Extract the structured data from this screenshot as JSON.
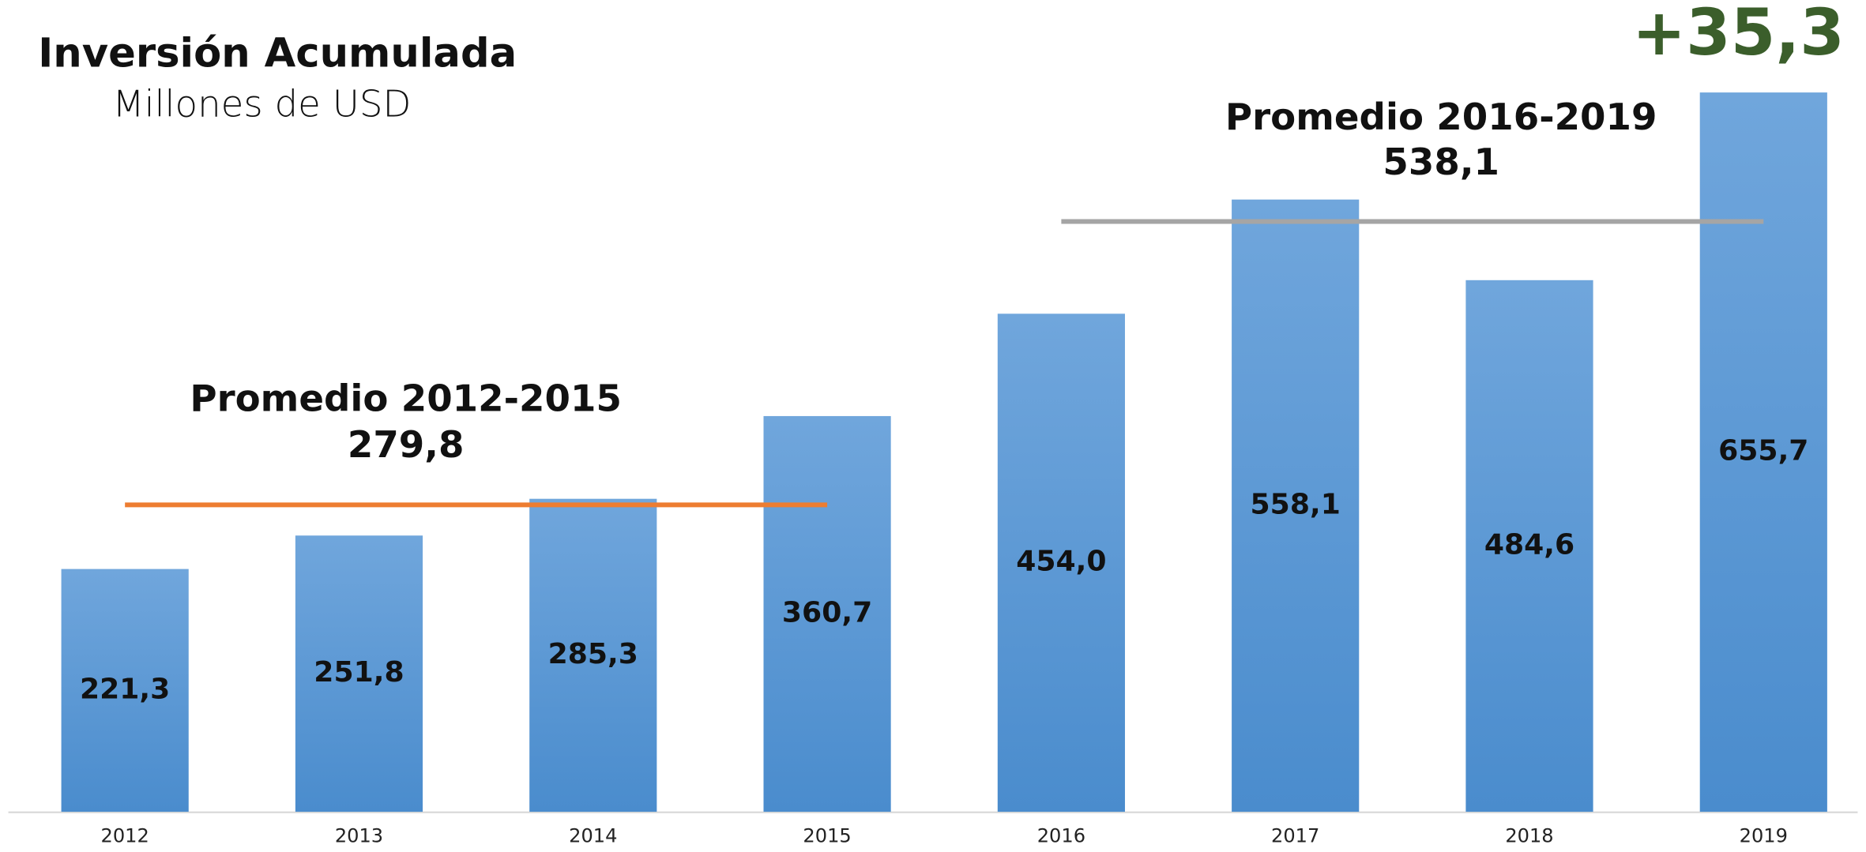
{
  "chart_data": {
    "type": "bar",
    "title": "Inversión Acumulada",
    "subtitle": "Millones de USD",
    "categories": [
      "2012",
      "2013",
      "2014",
      "2015",
      "2016",
      "2017",
      "2018",
      "2019"
    ],
    "values": [
      221.3,
      251.8,
      285.3,
      360.7,
      454.0,
      558.1,
      484.6,
      655.7
    ],
    "value_labels": [
      "221,3",
      "251,8",
      "285,3",
      "360,7",
      "454,0",
      "558,1",
      "484,6",
      "655,7"
    ],
    "color": "#5b9bd5",
    "ylim": [
      0,
      740
    ],
    "averages": [
      {
        "label": "Promedio 2012-2015",
        "value": 279.8,
        "value_label": "279,8",
        "start": "2012",
        "end": "2015",
        "color": "#ed7d31"
      },
      {
        "label": "Promedio 2016-2019",
        "value": 538.1,
        "value_label": "538,1",
        "start": "2016",
        "end": "2019",
        "color": "#a5a5a5"
      }
    ],
    "annotation": "+35,3",
    "annotation_color": "#3b5e2b"
  }
}
